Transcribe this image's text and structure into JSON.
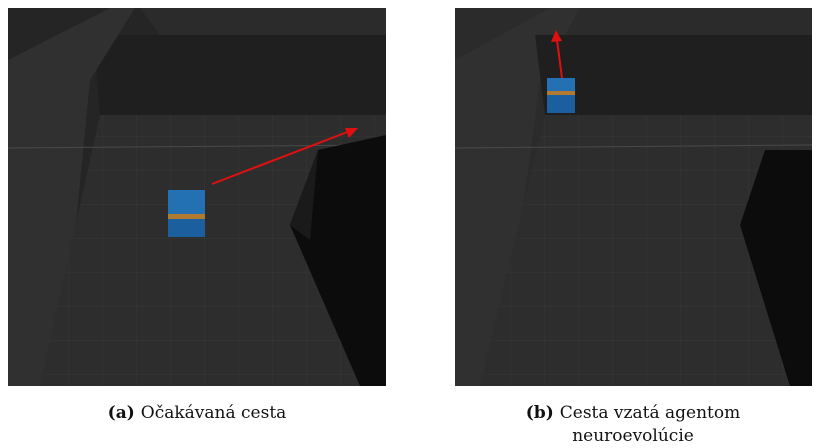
{
  "panels": [
    {
      "label": "(a)",
      "caption": "Očakávaná cesta"
    },
    {
      "label": "(b)",
      "caption": "Cesta vzatá agentom neuroevolúcie"
    }
  ]
}
